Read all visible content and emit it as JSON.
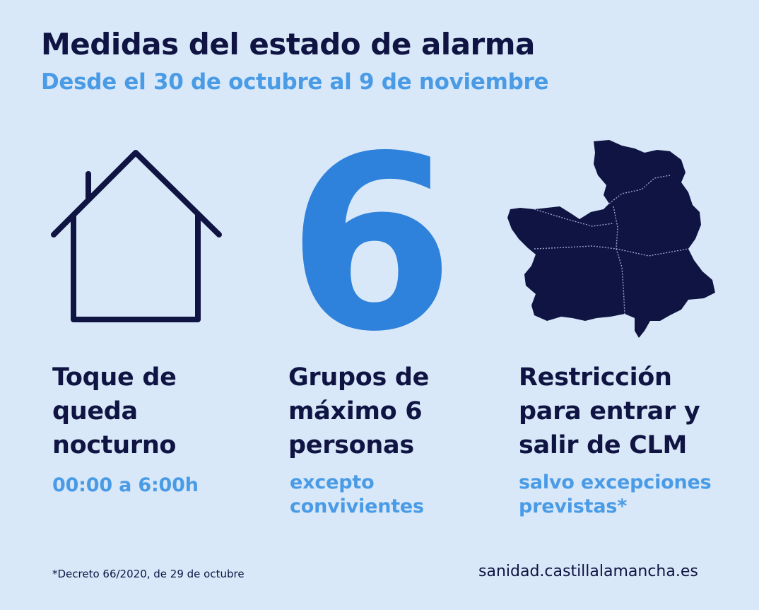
{
  "header": {
    "title": "Medidas del estado de alarma",
    "subtitle": "Desde el 30 de octubre al 9 de noviembre"
  },
  "big_number": "6",
  "columns": [
    {
      "icon": "house-icon",
      "heading_lines": [
        "Toque de",
        "queda",
        "nocturno"
      ],
      "sub_lines": [
        "00:00 a 6:00h"
      ]
    },
    {
      "icon": "number-six",
      "heading_lines": [
        "Grupos de",
        "máximo 6",
        "personas"
      ],
      "sub_lines": [
        "excepto",
        "convivientes"
      ]
    },
    {
      "icon": "castilla-la-mancha-map-icon",
      "heading_lines": [
        "Restricción",
        "para entrar y",
        "salir de CLM"
      ],
      "sub_lines": [
        "salvo excepciones",
        "previstas*"
      ]
    }
  ],
  "footer": {
    "footnote": "*Decreto 66/2020, de 29 de octubre",
    "website": "sanidad.castillalamancha.es"
  },
  "colors": {
    "background": "#d9e8f8",
    "dark": "#0f1443",
    "accent": "#4a9be6",
    "number_blue": "#2f82dc"
  }
}
